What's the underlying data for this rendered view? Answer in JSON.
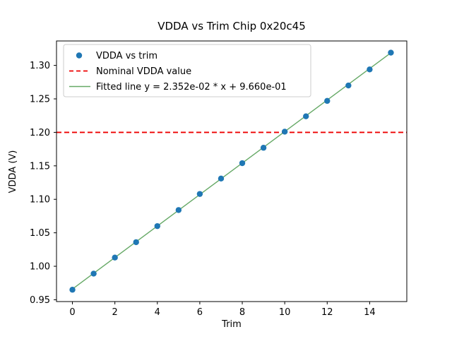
{
  "chart_data": {
    "type": "scatter",
    "title": "VDDA vs Trim Chip 0x20c45",
    "xlabel": "Trim",
    "ylabel": "VDDA (V)",
    "xlim": [
      -0.75,
      15.75
    ],
    "ylim": [
      0.9473,
      1.3365
    ],
    "xticks": [
      0,
      2,
      4,
      6,
      8,
      10,
      12,
      14
    ],
    "yticks": [
      0.95,
      1.0,
      1.05,
      1.1,
      1.15,
      1.2,
      1.25,
      1.3
    ],
    "grid": false,
    "legend_position": "upper left",
    "series": [
      {
        "name": "VDDA vs trim",
        "kind": "scatter",
        "color": "#1f77b4",
        "x": [
          0,
          1,
          2,
          3,
          4,
          5,
          6,
          7,
          8,
          9,
          10,
          11,
          12,
          13,
          14,
          15
        ],
        "y": [
          0.965,
          0.989,
          1.013,
          1.036,
          1.06,
          1.084,
          1.108,
          1.131,
          1.154,
          1.177,
          1.201,
          1.224,
          1.247,
          1.27,
          1.294,
          1.319
        ]
      },
      {
        "name": "Nominal VDDA value",
        "kind": "hline",
        "color": "#ee0000",
        "dashed": true,
        "y": 1.2
      },
      {
        "name": "Fitted line y = 2.352e-02 * x + 9.660e-01",
        "kind": "fitline",
        "color": "#66a966",
        "slope": 0.02352,
        "intercept": 0.966,
        "x_range": [
          0,
          15
        ]
      }
    ]
  }
}
